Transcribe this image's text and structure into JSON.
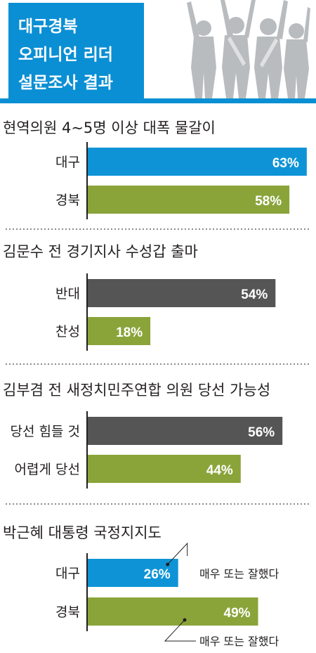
{
  "header": {
    "title_lines": [
      "대구경북",
      "오피니언 리더",
      "설문조사 결과"
    ]
  },
  "colors": {
    "accent_blue": "#0a8fd4",
    "bar_blue": "#0e94d6",
    "bar_green": "#8aa43a",
    "bar_gray": "#555555",
    "divider": "#8c8c8c"
  },
  "chart_data": [
    {
      "type": "bar",
      "title": "현역의원 4~5명 이상 대폭 물갈이",
      "categories": [
        "대구",
        "경북"
      ],
      "values": [
        63,
        58
      ],
      "value_labels": [
        "63%",
        "58%"
      ],
      "bar_colors": [
        "#0e94d6",
        "#8aa43a"
      ],
      "xlim": [
        0,
        100
      ]
    },
    {
      "type": "bar",
      "title": "김문수 전 경기지사 수성갑 출마",
      "categories": [
        "반대",
        "찬성"
      ],
      "values": [
        54,
        18
      ],
      "value_labels": [
        "54%",
        "18%"
      ],
      "bar_colors": [
        "#555555",
        "#8aa43a"
      ],
      "xlim": [
        0,
        100
      ]
    },
    {
      "type": "bar",
      "title": "김부겸 전 새정치민주연합 의원 당선 가능성",
      "categories": [
        "당선 힘들 것",
        "어렵게 당선"
      ],
      "values": [
        56,
        44
      ],
      "value_labels": [
        "56%",
        "44%"
      ],
      "bar_colors": [
        "#555555",
        "#8aa43a"
      ],
      "xlim": [
        0,
        100
      ]
    },
    {
      "type": "bar",
      "title": "박근혜 대통령 국정지지도",
      "categories": [
        "대구",
        "경북"
      ],
      "values": [
        26,
        49
      ],
      "value_labels": [
        "26%",
        "49%"
      ],
      "bar_colors": [
        "#0e94d6",
        "#8aa43a"
      ],
      "annotations": [
        "매우 또는 잘했다",
        "매우 또는 잘했다"
      ],
      "xlim": [
        0,
        100
      ]
    }
  ]
}
